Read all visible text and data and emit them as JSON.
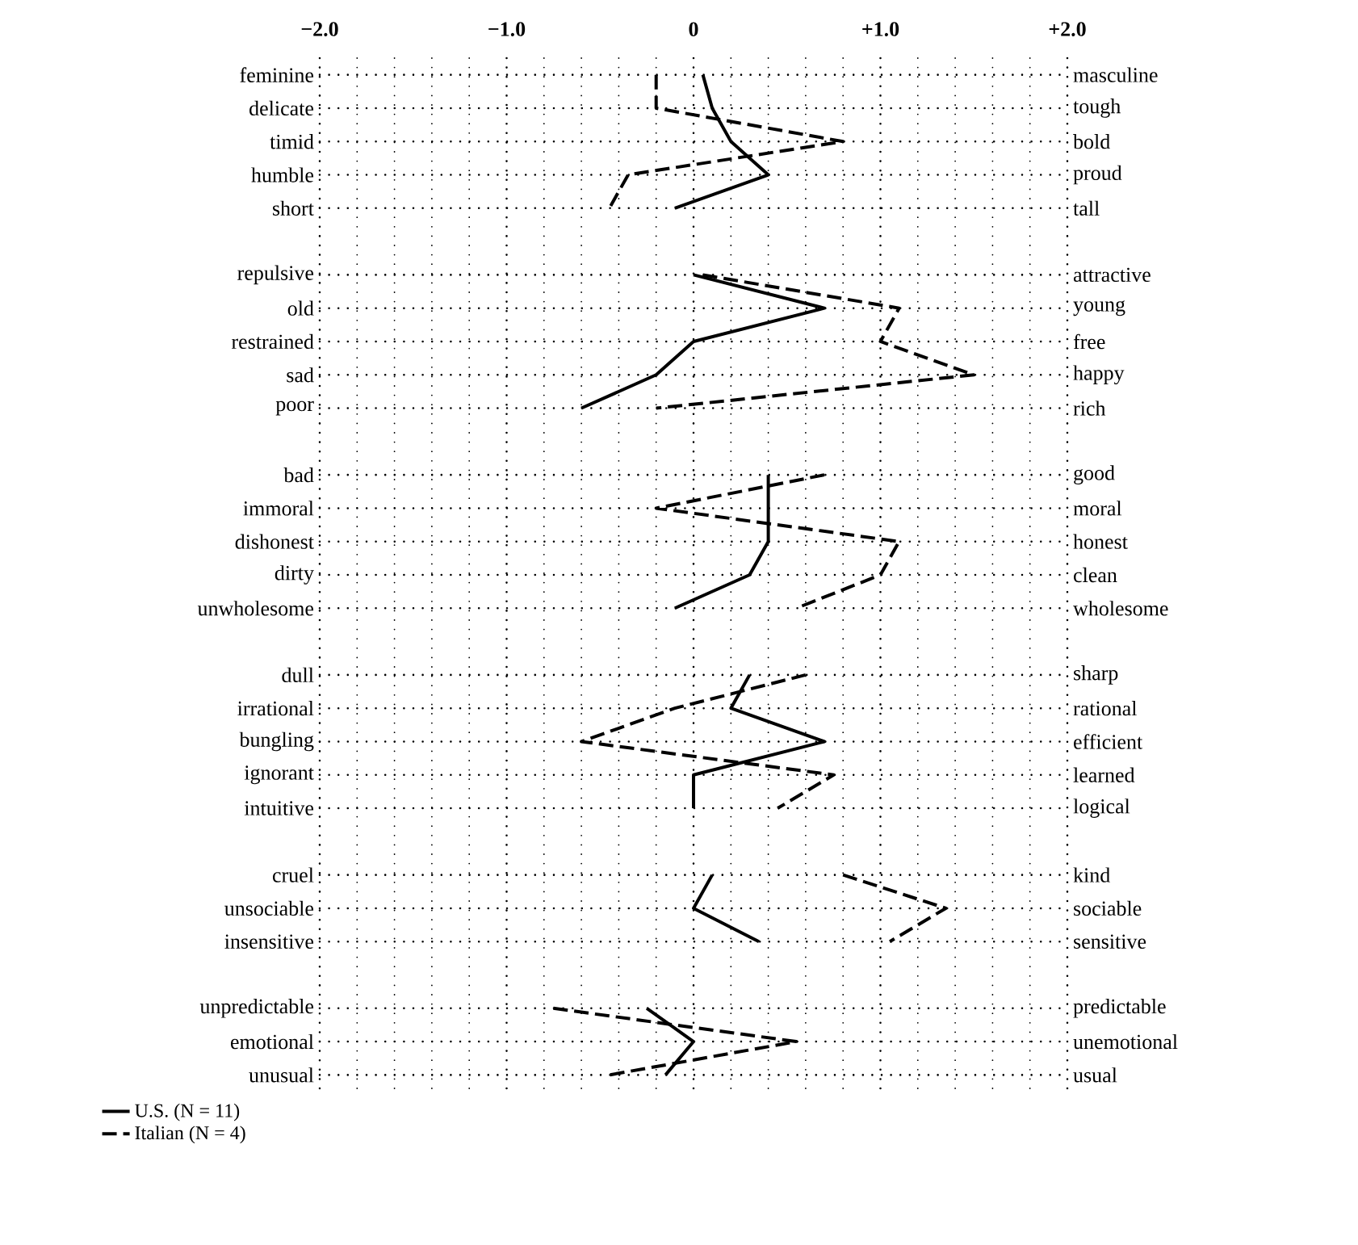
{
  "chart_data": {
    "type": "line",
    "orientation": "horizontal",
    "categories": [
      "feminine",
      "delicate",
      "timid",
      "humble",
      "short",
      null,
      "repulsive",
      "old",
      "restrained",
      "sad",
      "poor",
      null,
      "bad",
      "immoral",
      "dishonest",
      "dirty",
      "unwholesome",
      null,
      "dull",
      "irrational",
      "bungling",
      "ignorant",
      "intuitive",
      null,
      "cruel",
      "unsociable",
      "insensitive",
      null,
      "unpredictable",
      "emotional",
      "unusual"
    ],
    "y2_categories": [
      "masculine",
      "tough",
      "bold",
      "proud",
      "tall",
      null,
      "attractive",
      "young",
      "free",
      "happy",
      "rich",
      null,
      "good",
      "moral",
      "honest",
      "clean",
      "wholesome",
      null,
      "sharp",
      "rational",
      "efficient",
      "learned",
      "logical",
      null,
      "kind",
      "sociable",
      "sensitive",
      null,
      "predictable",
      "unemotional",
      "usual"
    ],
    "xlim": [
      -2.0,
      2.0
    ],
    "xticks": [
      {
        "value": -2,
        "label": "−2.0"
      },
      {
        "value": -1,
        "label": "−1.0"
      },
      {
        "value": 0,
        "label": "0"
      },
      {
        "value": 1,
        "label": "+1.0"
      },
      {
        "value": 2,
        "label": "+2.0"
      }
    ],
    "grid": true,
    "legend": "bottom left",
    "series": [
      {
        "name": "U.S. (N = 11)",
        "color": "#000000",
        "line_style": "solid",
        "values": [
          0.05,
          0.1,
          0.2,
          0.4,
          -0.1,
          null,
          0.0,
          0.7,
          0.0,
          -0.2,
          -0.6,
          null,
          0.4,
          0.4,
          0.4,
          0.3,
          -0.1,
          null,
          0.3,
          0.2,
          0.7,
          0.0,
          0.0,
          null,
          0.1,
          0.0,
          0.35,
          null,
          -0.25,
          0.0,
          -0.15
        ]
      },
      {
        "name": "Italian (N = 4)",
        "color": "#000000",
        "line_style": "dashed",
        "values": [
          -0.2,
          -0.2,
          0.8,
          -0.35,
          -0.45,
          null,
          0.05,
          1.1,
          1.0,
          1.5,
          -0.2,
          null,
          0.7,
          -0.2,
          1.1,
          1.0,
          0.55,
          null,
          0.6,
          -0.1,
          -0.6,
          0.75,
          0.45,
          null,
          0.8,
          1.35,
          1.05,
          null,
          -0.75,
          0.55,
          -0.45
        ]
      }
    ]
  }
}
